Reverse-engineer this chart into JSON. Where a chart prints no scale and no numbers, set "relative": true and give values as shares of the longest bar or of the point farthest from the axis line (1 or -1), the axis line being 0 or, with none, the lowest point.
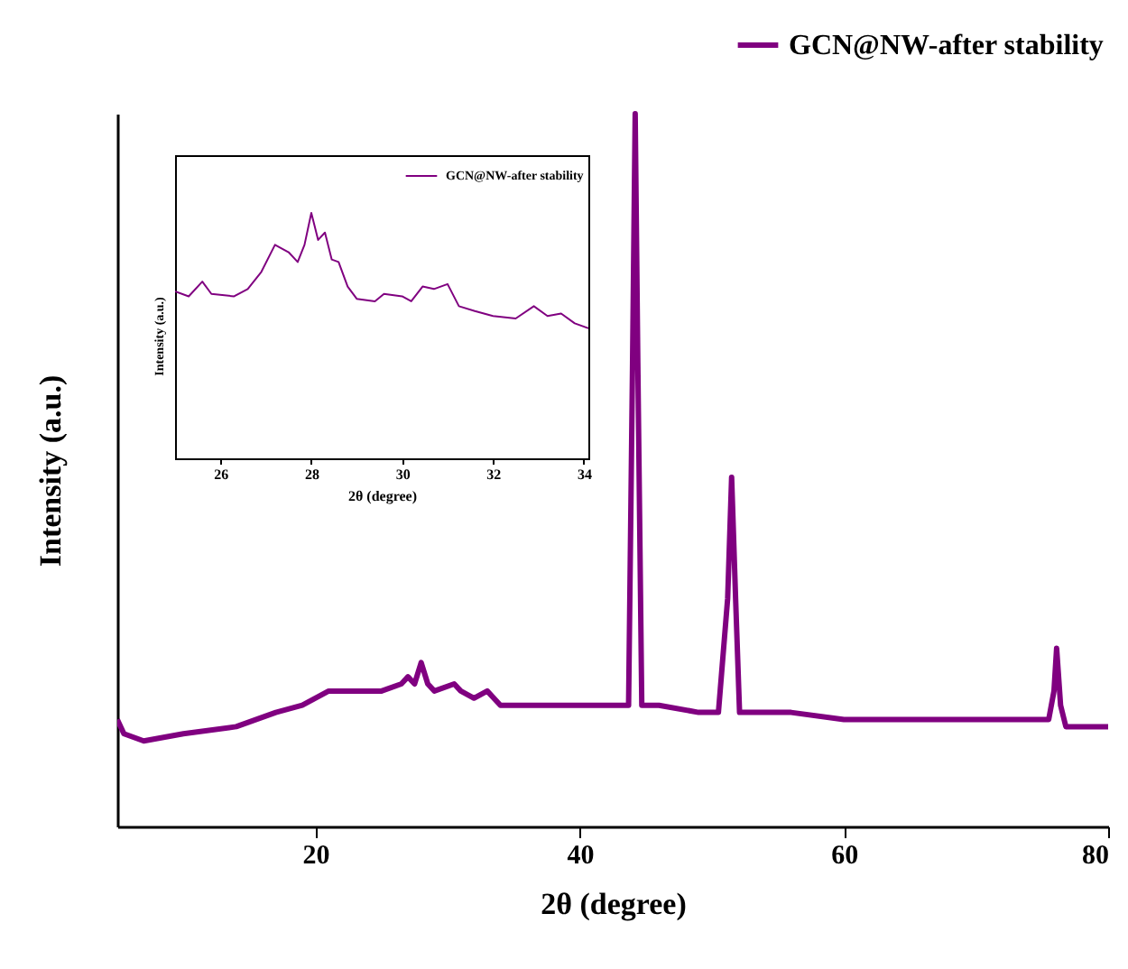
{
  "chart_data": [
    {
      "type": "line",
      "xlabel": "2θ (degree)",
      "ylabel": "Intensity (a.u.)",
      "relative": true,
      "xlim": [
        5,
        80
      ],
      "xticks": [
        20,
        40,
        60,
        80
      ],
      "legend": "top right",
      "grid": false,
      "series": [
        {
          "name": "GCN@NW-after stability",
          "color": "#800080",
          "x": [
            5,
            5.5,
            7,
            10,
            14,
            17,
            19,
            21,
            25,
            26.5,
            27,
            27.5,
            28,
            28.5,
            29,
            30.5,
            31,
            32,
            33,
            34,
            38,
            43,
            43.7,
            44.0,
            44.2,
            44.4,
            44.7,
            46,
            49,
            50.5,
            51.2,
            51.5,
            51.8,
            52.1,
            56,
            60,
            70,
            75.5,
            75.9,
            76.1,
            76.4,
            76.8,
            80
          ],
          "values": [
            0.15,
            0.13,
            0.12,
            0.13,
            0.14,
            0.16,
            0.17,
            0.19,
            0.19,
            0.2,
            0.21,
            0.2,
            0.23,
            0.2,
            0.19,
            0.2,
            0.19,
            0.18,
            0.19,
            0.17,
            0.17,
            0.17,
            0.17,
            0.65,
            1.0,
            0.65,
            0.17,
            0.17,
            0.16,
            0.16,
            0.32,
            0.49,
            0.32,
            0.16,
            0.16,
            0.15,
            0.15,
            0.15,
            0.19,
            0.25,
            0.17,
            0.14,
            0.14
          ]
        }
      ]
    },
    {
      "type": "line",
      "xlabel": "2θ (degree)",
      "ylabel": "Intensity (a.u.)",
      "relative": true,
      "xlim": [
        25,
        34.1
      ],
      "xticks": [
        26,
        28,
        30,
        32,
        34
      ],
      "legend": "top right",
      "grid": false,
      "series": [
        {
          "name": "GCN@NW-after stability",
          "color": "#800080",
          "x": [
            25,
            25.3,
            25.6,
            25.8,
            26.3,
            26.6,
            26.9,
            27.2,
            27.5,
            27.7,
            27.85,
            28.0,
            28.15,
            28.3,
            28.45,
            28.6,
            28.8,
            29.0,
            29.4,
            29.6,
            30.0,
            30.2,
            30.45,
            30.7,
            31.0,
            31.25,
            31.6,
            32.0,
            32.5,
            32.9,
            33.2,
            33.5,
            33.8,
            34.1
          ],
          "values": [
            0.68,
            0.66,
            0.72,
            0.67,
            0.66,
            0.69,
            0.76,
            0.87,
            0.84,
            0.8,
            0.87,
            1.0,
            0.89,
            0.92,
            0.81,
            0.8,
            0.7,
            0.65,
            0.64,
            0.67,
            0.66,
            0.64,
            0.7,
            0.69,
            0.71,
            0.62,
            0.6,
            0.58,
            0.57,
            0.62,
            0.58,
            0.59,
            0.55,
            0.53
          ]
        }
      ]
    }
  ]
}
